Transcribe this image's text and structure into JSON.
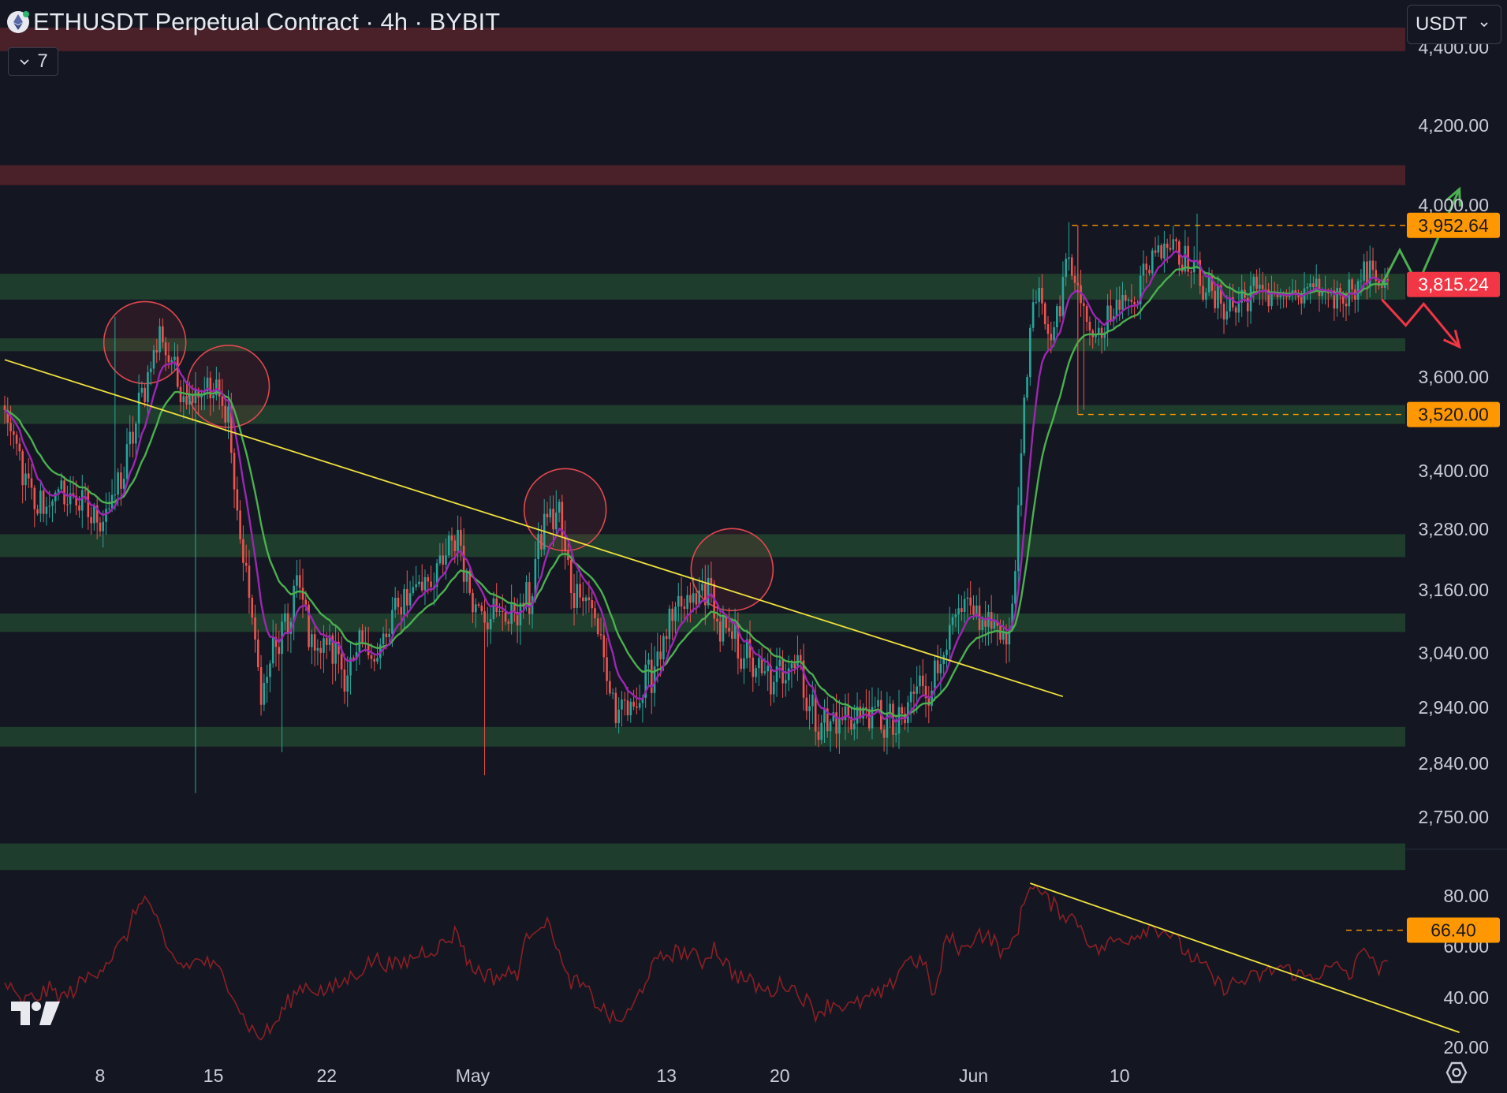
{
  "header": {
    "title": "ETHUSDT Perpetual Contract · 4h · BYBIT",
    "indicator_count": "7",
    "currency": "USDT"
  },
  "colors": {
    "background": "#141722",
    "support_zone": "#1f3d2c",
    "resistance_zone": "#4a2029",
    "trendline": "#f0e040",
    "up_arrow": "#4caf50",
    "down_arrow": "#f23645",
    "ema_fast": "#9c27b0",
    "ema_slow": "#4caf50",
    "rsi": "#8b1f25",
    "last_price": "#f23645",
    "marker": "#ff9800"
  },
  "chart_data": [
    {
      "type": "candlestick",
      "pane": "price",
      "ylim": [
        2700,
        4500
      ],
      "y_ticks": [
        "4,400.00",
        "4,200.00",
        "4,000.00",
        "3,600.00",
        "3,400.00",
        "3,280.00",
        "3,160.00",
        "3,040.00",
        "2,940.00",
        "2,840.00",
        "2,750.00"
      ],
      "x_ticks": [
        "8",
        "15",
        "22",
        "May",
        "13",
        "20",
        "Jun",
        "10"
      ],
      "price_labels": [
        {
          "value": "3,952.64",
          "kind": "level"
        },
        {
          "value": "3,815.24",
          "kind": "last"
        },
        {
          "value": "3,520.00",
          "kind": "level"
        }
      ],
      "resistance_zones": [
        [
          4390,
          4450
        ],
        [
          4050,
          4100
        ]
      ],
      "support_zones": [
        [
          3780,
          3840
        ],
        [
          3660,
          3690
        ],
        [
          3500,
          3540
        ],
        [
          3225,
          3270
        ],
        [
          3080,
          3115
        ],
        [
          2870,
          2905
        ],
        [
          2690,
          2720
        ]
      ],
      "path": [
        [
          0,
          3520
        ],
        [
          5,
          3420
        ],
        [
          10,
          3320
        ],
        [
          18,
          3350
        ],
        [
          25,
          3340
        ],
        [
          30,
          3300
        ],
        [
          35,
          3320
        ],
        [
          40,
          3400
        ],
        [
          46,
          3560
        ],
        [
          52,
          3700
        ],
        [
          55,
          3650
        ],
        [
          60,
          3560
        ],
        [
          66,
          3580
        ],
        [
          71,
          3560
        ],
        [
          75,
          3520
        ],
        [
          78,
          3300
        ],
        [
          82,
          3150
        ],
        [
          86,
          2960
        ],
        [
          90,
          3040
        ],
        [
          95,
          3090
        ],
        [
          98,
          3180
        ],
        [
          103,
          3060
        ],
        [
          110,
          3050
        ],
        [
          115,
          3000
        ],
        [
          120,
          3050
        ],
        [
          126,
          3040
        ],
        [
          132,
          3130
        ],
        [
          138,
          3170
        ],
        [
          146,
          3200
        ],
        [
          152,
          3270
        ],
        [
          156,
          3150
        ],
        [
          162,
          3120
        ],
        [
          170,
          3110
        ],
        [
          176,
          3140
        ],
        [
          181,
          3300
        ],
        [
          186,
          3310
        ],
        [
          190,
          3160
        ],
        [
          195,
          3160
        ],
        [
          200,
          3060
        ],
        [
          205,
          2920
        ],
        [
          210,
          2940
        ],
        [
          215,
          2980
        ],
        [
          220,
          3050
        ],
        [
          226,
          3120
        ],
        [
          232,
          3140
        ],
        [
          236,
          3170
        ],
        [
          240,
          3080
        ],
        [
          245,
          3060
        ],
        [
          252,
          3010
        ],
        [
          258,
          2980
        ],
        [
          262,
          3020
        ],
        [
          266,
          3040
        ],
        [
          270,
          2930
        ],
        [
          276,
          2910
        ],
        [
          282,
          2920
        ],
        [
          288,
          2930
        ],
        [
          294,
          2920
        ],
        [
          300,
          2900
        ],
        [
          306,
          2980
        ],
        [
          311,
          2980
        ],
        [
          316,
          3070
        ],
        [
          322,
          3120
        ],
        [
          328,
          3100
        ],
        [
          335,
          3080
        ],
        [
          338,
          3100
        ],
        [
          341,
          3450
        ],
        [
          344,
          3700
        ],
        [
          347,
          3800
        ],
        [
          350,
          3700
        ],
        [
          354,
          3760
        ],
        [
          357,
          3900
        ],
        [
          360,
          3800
        ],
        [
          364,
          3720
        ],
        [
          368,
          3720
        ],
        [
          374,
          3770
        ],
        [
          380,
          3800
        ],
        [
          386,
          3900
        ],
        [
          392,
          3920
        ],
        [
          396,
          3870
        ],
        [
          400,
          3840
        ],
        [
          406,
          3780
        ],
        [
          412,
          3760
        ],
        [
          418,
          3800
        ],
        [
          424,
          3800
        ],
        [
          430,
          3780
        ],
        [
          436,
          3790
        ],
        [
          442,
          3800
        ],
        [
          448,
          3790
        ],
        [
          454,
          3820
        ],
        [
          458,
          3850
        ],
        [
          461,
          3830
        ],
        [
          464,
          3815
        ]
      ]
    },
    {
      "type": "line",
      "pane": "rsi",
      "ylim": [
        20,
        90
      ],
      "y_ticks": [
        "80.00",
        "60.00",
        "40.00",
        "20.00"
      ],
      "level_label": "66.40",
      "path": [
        [
          0,
          46
        ],
        [
          5,
          38
        ],
        [
          10,
          40
        ],
        [
          15,
          43
        ],
        [
          20,
          40
        ],
        [
          28,
          48
        ],
        [
          35,
          55
        ],
        [
          40,
          62
        ],
        [
          46,
          80
        ],
        [
          50,
          74
        ],
        [
          54,
          58
        ],
        [
          60,
          52
        ],
        [
          66,
          55
        ],
        [
          72,
          50
        ],
        [
          76,
          44
        ],
        [
          80,
          32
        ],
        [
          85,
          24
        ],
        [
          90,
          28
        ],
        [
          95,
          38
        ],
        [
          100,
          45
        ],
        [
          108,
          42
        ],
        [
          116,
          48
        ],
        [
          124,
          55
        ],
        [
          132,
          52
        ],
        [
          140,
          58
        ],
        [
          146,
          60
        ],
        [
          152,
          66
        ],
        [
          156,
          52
        ],
        [
          164,
          48
        ],
        [
          172,
          50
        ],
        [
          176,
          66
        ],
        [
          180,
          70
        ],
        [
          184,
          66
        ],
        [
          188,
          48
        ],
        [
          194,
          44
        ],
        [
          200,
          36
        ],
        [
          205,
          30
        ],
        [
          210,
          34
        ],
        [
          216,
          50
        ],
        [
          222,
          57
        ],
        [
          228,
          58
        ],
        [
          234,
          54
        ],
        [
          238,
          60
        ],
        [
          244,
          50
        ],
        [
          250,
          46
        ],
        [
          256,
          42
        ],
        [
          262,
          46
        ],
        [
          268,
          40
        ],
        [
          272,
          34
        ],
        [
          278,
          38
        ],
        [
          284,
          36
        ],
        [
          290,
          40
        ],
        [
          296,
          42
        ],
        [
          302,
          55
        ],
        [
          308,
          54
        ],
        [
          312,
          40
        ],
        [
          316,
          64
        ],
        [
          322,
          58
        ],
        [
          326,
          66
        ],
        [
          332,
          62
        ],
        [
          336,
          56
        ],
        [
          340,
          68
        ],
        [
          344,
          86
        ],
        [
          348,
          80
        ],
        [
          354,
          74
        ],
        [
          360,
          70
        ],
        [
          366,
          58
        ],
        [
          372,
          62
        ],
        [
          378,
          64
        ],
        [
          384,
          68
        ],
        [
          390,
          66
        ],
        [
          396,
          58
        ],
        [
          402,
          52
        ],
        [
          408,
          44
        ],
        [
          414,
          46
        ],
        [
          420,
          48
        ],
        [
          428,
          52
        ],
        [
          436,
          48
        ],
        [
          442,
          50
        ],
        [
          448,
          52
        ],
        [
          452,
          48
        ],
        [
          456,
          62
        ],
        [
          460,
          50
        ],
        [
          464,
          52
        ]
      ]
    }
  ],
  "annotations": {
    "trendline_price": [
      [
        0,
        3640
      ],
      [
        355,
        2960
      ]
    ],
    "trendline_rsi": [
      [
        344,
        85
      ],
      [
        488,
        26
      ]
    ],
    "circles": [
      [
        47,
        3680
      ],
      [
        75,
        3580
      ],
      [
        188,
        3320
      ],
      [
        244,
        3200
      ]
    ],
    "level_lines": [
      {
        "from": 358,
        "value": 3952.64
      },
      {
        "from": 360,
        "value": 3520
      }
    ],
    "rsi_level_line": {
      "from": 450,
      "value": 66.4
    },
    "up_arrow": [
      [
        462,
        3815
      ],
      [
        468,
        3895
      ],
      [
        474,
        3815
      ],
      [
        488,
        4040
      ]
    ],
    "down_arrow": [
      [
        462,
        3780
      ],
      [
        470,
        3720
      ],
      [
        476,
        3770
      ],
      [
        488,
        3670
      ]
    ]
  }
}
